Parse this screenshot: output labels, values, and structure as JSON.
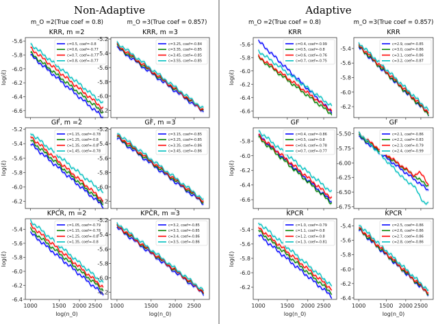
{
  "headers": {
    "left": "Non-Adaptive",
    "right": "Adaptive"
  },
  "subtitles": [
    "m_O =2(True coef = 0.8)",
    "m_O =3(True coef = 0.857)",
    "m_O =2(True coef = 0.8)",
    "m_O =3(True coef = 0.857)"
  ],
  "colors": {
    "blue": "#0000ff",
    "green": "#008000",
    "red": "#ff0000",
    "cyan": "#00bfbf"
  },
  "chart_data": [
    {
      "type": "line",
      "title": "KRR, m =2",
      "ylabel": "log(ε̂)",
      "xlabel": "",
      "ylim": [
        -6.7,
        -5.55
      ],
      "yticks": [
        "-5.6",
        "-5.8",
        "-6.0",
        "-6.2",
        "-6.4",
        "-6.6"
      ],
      "xticks": [
        1000,
        1500,
        2000,
        2500
      ],
      "series": [
        {
          "name": "c=0.5, coef=-0.8",
          "start": -5.8,
          "end": -6.7
        },
        {
          "name": "c=0.6, coef=-0.77",
          "start": -5.77,
          "end": -6.63
        },
        {
          "name": "c=0.7, coef=-0.77",
          "start": -5.7,
          "end": -6.57
        },
        {
          "name": "c=0.8, coef=-0.77",
          "start": -5.64,
          "end": -6.5
        }
      ]
    },
    {
      "type": "line",
      "title": "KRR, m =3",
      "ylabel": "",
      "xlabel": "",
      "ylim": [
        -6.3,
        -5.18
      ],
      "yticks": [
        "-5.2",
        "-5.4",
        "-5.6",
        "-5.8",
        "-6.0",
        "-6.2"
      ],
      "xticks": [
        1000,
        1500,
        2000,
        2500
      ],
      "series": [
        {
          "name": "c=3.25, coef=-0.84",
          "start": -5.32,
          "end": -6.22
        },
        {
          "name": "c=3.35, coef=-0.85",
          "start": -5.3,
          "end": -6.2
        },
        {
          "name": "c=3.45, coef=-0.85",
          "start": -5.28,
          "end": -6.2
        },
        {
          "name": "c=3.55, coef=-0.85",
          "start": -5.25,
          "end": -6.18
        }
      ]
    },
    {
      "type": "line",
      "title": "Adaptive KRR",
      "display_title": "KRR",
      "ylabel": "log(ε̂)",
      "xlabel": "",
      "ylim": [
        -6.7,
        -5.5
      ],
      "yticks": [
        "-5.6",
        "-5.8",
        "-6.0",
        "-6.2",
        "-6.4",
        "-6.6"
      ],
      "xticks": [
        1000,
        1500,
        2000,
        2500
      ],
      "series": [
        {
          "name": "c=0.4, coef=-0.99",
          "start": -5.55,
          "end": -6.62
        },
        {
          "name": "c=0.5, coef=-0.8",
          "start": -5.8,
          "end": -6.65
        },
        {
          "name": "c=0.6, coef=-0.76",
          "start": -5.78,
          "end": -6.6
        },
        {
          "name": "c=0.7, coef=-0.75",
          "start": -5.7,
          "end": -6.53
        }
      ]
    },
    {
      "type": "line",
      "title": "Adaptive KRR",
      "display_title": "KRR",
      "ylabel": "",
      "xlabel": "",
      "ylim": [
        -6.35,
        -5.25
      ],
      "yticks": [
        "-5.4",
        "-5.6",
        "-5.8",
        "-6.0",
        "-6.2"
      ],
      "xticks": [
        1000,
        1500,
        2000,
        2500
      ],
      "series": [
        {
          "name": "c=2.9, coef=-0.85",
          "start": -5.38,
          "end": -6.3
        },
        {
          "name": "c=3.0, coef=-0.86",
          "start": -5.37,
          "end": -6.3
        },
        {
          "name": "c=3.1, coef=-0.86",
          "start": -5.35,
          "end": -6.28
        },
        {
          "name": "c=3.2, coef=-0.87",
          "start": -5.32,
          "end": -6.25
        }
      ]
    },
    {
      "type": "line",
      "title": "GF, m =2",
      "ylabel": "log(ε̂)",
      "xlabel": "",
      "ylim": [
        -6.3,
        -5.18
      ],
      "yticks": [
        "-5.2",
        "-5.4",
        "-5.6",
        "-5.8",
        "-6.0",
        "-6.2"
      ],
      "xticks": [
        1000,
        1500,
        2000,
        2500
      ],
      "series": [
        {
          "name": "c=1.15, coef=-0.78",
          "start": -5.4,
          "end": -6.27
        },
        {
          "name": "c=1.25, coef=-0.8",
          "start": -5.35,
          "end": -6.23
        },
        {
          "name": "c=1.35, coef=-0.8",
          "start": -5.3,
          "end": -6.19
        },
        {
          "name": "c=1.45, coef=-0.78",
          "start": -5.25,
          "end": -6.08
        }
      ]
    },
    {
      "type": "line",
      "title": "GF, m =3",
      "ylabel": "",
      "xlabel": "",
      "ylim": [
        -6.3,
        -5.18
      ],
      "yticks": [
        "-5.2",
        "-5.4",
        "-5.6",
        "-5.8",
        "-6.0",
        "-6.2"
      ],
      "xticks": [
        1000,
        1500,
        2000,
        2500
      ],
      "series": [
        {
          "name": "c=3.15, coef=-0.85",
          "start": -5.32,
          "end": -6.23
        },
        {
          "name": "c=3.25, coef=-0.85",
          "start": -5.3,
          "end": -6.21
        },
        {
          "name": "c=3.35, coef=-0.86",
          "start": -5.28,
          "end": -6.2
        },
        {
          "name": "c=3.45, coef=-0.86",
          "start": -5.25,
          "end": -6.18
        }
      ]
    },
    {
      "type": "line",
      "title": "Adaptive GF",
      "display_title": "GF",
      "ylabel": "log(ε̂)",
      "xlabel": "",
      "ylim": [
        -6.72,
        -5.62
      ],
      "yticks": [
        "-5.8",
        "-6.0",
        "-6.2",
        "-6.4",
        "-6.6"
      ],
      "xticks": [
        1000,
        1500,
        2000,
        2500
      ],
      "series": [
        {
          "name": "c=0.4, coef=-0.86",
          "start": -5.72,
          "end": -6.63
        },
        {
          "name": "c=0.5, coef=-0.8",
          "start": -5.75,
          "end": -6.65
        },
        {
          "name": "c=0.6, coef=-0.78",
          "start": -5.72,
          "end": -6.58
        },
        {
          "name": "c=0.7, coef=-0.77",
          "start": -5.66,
          "end": -6.5
        }
      ]
    },
    {
      "type": "line",
      "title": "Adaptive GF",
      "display_title": "GF",
      "ylabel": "",
      "xlabel": "",
      "ylim": [
        -6.78,
        -5.4
      ],
      "yticks": [
        "-5.50",
        "-5.75",
        "-6.00",
        "-6.25",
        "-6.50",
        "-6.75"
      ],
      "xticks": [
        1000,
        1500,
        2000,
        2500
      ],
      "series": [
        {
          "name": "c=2.1, coef=-0.86",
          "start": -5.55,
          "end": -6.47
        },
        {
          "name": "c=2.2, coef=-0.83",
          "start": -5.53,
          "end": -6.4
        },
        {
          "name": "c=2.3, coef=-0.79",
          "start": -5.5,
          "end": -6.4
        },
        {
          "name": "c=2.4, coef=-0.99",
          "start": -5.48,
          "end": -6.7
        }
      ]
    },
    {
      "type": "line",
      "title": "KPCR, m =2",
      "ylabel": "log(ε̂)",
      "xlabel": "log(n_0)",
      "ylim": [
        -6.4,
        -5.25
      ],
      "yticks": [
        "-5.4",
        "-5.6",
        "-5.8",
        "-6.0",
        "-6.2",
        "-6.4"
      ],
      "xticks": [
        1000,
        1500,
        2000,
        2500
      ],
      "series": [
        {
          "name": "c=1.05, coef=-0.79",
          "start": -5.45,
          "end": -6.33
        },
        {
          "name": "c=1.15, coef=-0.78",
          "start": -5.4,
          "end": -6.27
        },
        {
          "name": "c=1.25, coef=-0.8",
          "start": -5.34,
          "end": -6.23
        },
        {
          "name": "c=1.35, coef=-0.8",
          "start": -5.28,
          "end": -6.17
        }
      ]
    },
    {
      "type": "line",
      "title": "KPCR, m =3",
      "ylabel": "",
      "xlabel": "log(n_0)",
      "ylim": [
        -6.3,
        -5.18
      ],
      "yticks": [
        "-5.2",
        "-5.4",
        "-5.6",
        "-5.8",
        "-6.0",
        "-6.2"
      ],
      "xticks": [
        1000,
        1500,
        2000,
        2500
      ],
      "series": [
        {
          "name": "c=3.2, coef=-0.85",
          "start": -5.3,
          "end": -6.22
        },
        {
          "name": "c=3.3, coef=-0.85",
          "start": -5.28,
          "end": -6.2
        },
        {
          "name": "c=3.4, coef=-0.86",
          "start": -5.27,
          "end": -6.2
        },
        {
          "name": "c=3.5, coef=-0.86",
          "start": -5.24,
          "end": -6.18
        }
      ]
    },
    {
      "type": "line",
      "title": "Adaptive KPCR",
      "display_title": "KPCR",
      "ylabel": "log(ε̂)",
      "xlabel": "log(n_0)",
      "ylim": [
        -6.37,
        -5.25
      ],
      "yticks": [
        "-5.4",
        "-5.6",
        "-5.8",
        "-6.0",
        "-6.2"
      ],
      "xticks": [
        1000,
        1500,
        2000,
        2500
      ],
      "series": [
        {
          "name": "c=1.0, coef=-0.79",
          "start": -5.47,
          "end": -6.33
        },
        {
          "name": "c=1.1, coef=-0.8",
          "start": -5.41,
          "end": -6.28
        },
        {
          "name": "c=1.2, coef=-0.8",
          "start": -5.37,
          "end": -6.23
        },
        {
          "name": "c=1.3, coef=-0.81",
          "start": -5.3,
          "end": -6.18
        }
      ]
    },
    {
      "type": "line",
      "title": "Adaptive KPCR",
      "display_title": "KPCR",
      "ylabel": "",
      "xlabel": "log(n_0)",
      "ylim": [
        -6.42,
        -5.3
      ],
      "yticks": [
        "-5.4",
        "-5.6",
        "-5.8",
        "-6.0",
        "-6.2",
        "-6.4"
      ],
      "xticks": [
        1000,
        1500,
        2000,
        2500
      ],
      "series": [
        {
          "name": "c=2.5, coef=-0.86",
          "start": -5.45,
          "end": -6.35
        },
        {
          "name": "c=2.6, coef=-0.86",
          "start": -5.44,
          "end": -6.34
        },
        {
          "name": "c=2.7, coef=-0.86",
          "start": -5.42,
          "end": -6.33
        },
        {
          "name": "c=2.8, coef=-0.86",
          "start": -5.38,
          "end": -6.3
        }
      ]
    }
  ]
}
